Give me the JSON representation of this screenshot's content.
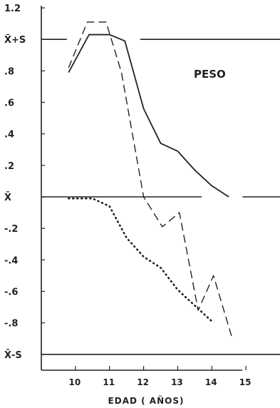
{
  "chart_data": {
    "type": "line",
    "title": "PESO",
    "xlabel": "EDAD ( AÑOS)",
    "ylabel": "",
    "xlim": [
      9,
      16
    ],
    "ylim": [
      -1.25,
      1.25
    ],
    "x_ticks": [
      10,
      11,
      12,
      13,
      14,
      15
    ],
    "x_tick_labels": [
      "10",
      "11",
      "12",
      "13",
      "14",
      "15"
    ],
    "y_ticks": [
      1.2,
      1.0,
      0.8,
      0.6,
      0.4,
      0.2,
      0,
      -0.2,
      -0.4,
      -0.6,
      -0.8,
      -1.0
    ],
    "y_tick_labels": [
      "1.2",
      "X̄+S",
      ".8",
      ".6",
      ".4",
      ".2",
      "X̄",
      "-.2",
      "-.4",
      "-.6",
      "-.8",
      "X̄-S"
    ],
    "grid": false,
    "reference_lines": [
      {
        "y": 1.0,
        "x_ranges": [
          [
            9,
            9.75
          ],
          [
            11.9,
            16
          ]
        ]
      },
      {
        "y": 0,
        "x_ranges": [
          [
            9,
            13.7
          ],
          [
            14.9,
            16
          ]
        ]
      },
      {
        "y": -1.0,
        "x_ranges": [
          [
            9,
            16
          ]
        ]
      }
    ],
    "series": [
      {
        "style": "solid",
        "x": [
          9.8,
          10.4,
          11.0,
          11.45,
          12.0,
          12.5,
          13.0,
          13.5,
          14.0,
          14.5
        ],
        "y": [
          0.79,
          1.03,
          1.03,
          0.99,
          0.56,
          0.34,
          0.29,
          0.17,
          0.07,
          0.0
        ]
      },
      {
        "style": "dashed",
        "x": [
          9.8,
          10.35,
          10.9,
          11.35,
          12.0,
          12.55,
          13.05,
          13.6,
          14.05,
          14.6
        ],
        "y": [
          0.82,
          1.11,
          1.11,
          0.79,
          0.0,
          -0.19,
          -0.1,
          -0.72,
          -0.5,
          -0.9
        ]
      },
      {
        "style": "dotted",
        "x": [
          9.8,
          10.5,
          11.0,
          11.5,
          12.0,
          12.5,
          13.0,
          13.5,
          14.0
        ],
        "y": [
          -0.01,
          -0.01,
          -0.06,
          -0.26,
          -0.38,
          -0.45,
          -0.59,
          -0.69,
          -0.79
        ]
      }
    ]
  }
}
